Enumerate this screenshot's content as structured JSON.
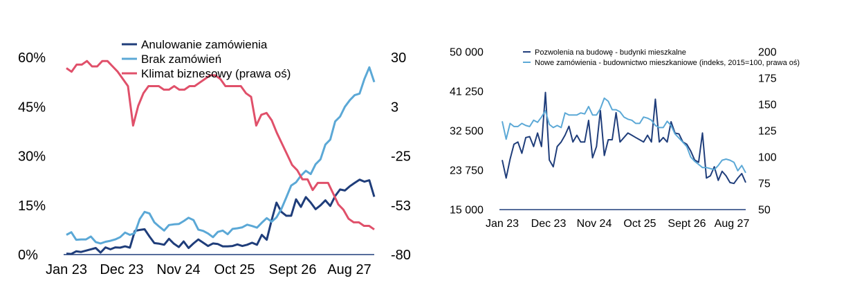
{
  "chart_data": [
    {
      "type": "line",
      "x_ticks": [
        "Jan 23",
        "Dec 23",
        "Nov 24",
        "Oct 25",
        "Sept 26",
        "Aug 27"
      ],
      "y_left": {
        "ticks": [
          "0%",
          "15%",
          "30%",
          "45%",
          "60%"
        ],
        "range": [
          0,
          60
        ]
      },
      "y_right": {
        "ticks": [
          "-80",
          "-53",
          "-25",
          "3",
          "30"
        ],
        "range": [
          -80,
          30
        ]
      },
      "legend_position": "top-center",
      "grid": false,
      "series": [
        {
          "name": "Anulowanie zamówienia",
          "axis": "left",
          "color": "#1f3d7a",
          "values": [
            0.3,
            0.2,
            1,
            0.8,
            1.2,
            1.6,
            2,
            0.6,
            2.2,
            1.6,
            2.2,
            2.1,
            2.5,
            2.1,
            7.2,
            7.5,
            7.7,
            5.5,
            3.5,
            3.3,
            3,
            4.8,
            3.3,
            2.3,
            4,
            2,
            3.4,
            4.6,
            3.6,
            2.6,
            3.4,
            3.2,
            2.5,
            2.5,
            2.6,
            3.1,
            2.6,
            3,
            3.6,
            3,
            6,
            4.5,
            10.5,
            15.8,
            13,
            11.8,
            11.8,
            16.8,
            14.5,
            17.5,
            15.8,
            13.8,
            15,
            16.5,
            14.8,
            17.8,
            19.8,
            19.5,
            20.8,
            21.8,
            22.8,
            22.2,
            22.6,
            17.6
          ]
        },
        {
          "name": "Brak zamówień",
          "axis": "left",
          "color": "#5ba8d6",
          "values": [
            6,
            6.8,
            4.5,
            4.6,
            4.6,
            5.5,
            3.8,
            3.4,
            3.9,
            4.2,
            4.6,
            5.3,
            6.7,
            6,
            6.5,
            10.8,
            13,
            12.5,
            9.8,
            8.5,
            7.3,
            9,
            9.2,
            9.3,
            10.2,
            11.2,
            10.5,
            7.6,
            7.2,
            6.4,
            5.3,
            6.9,
            7.3,
            6.2,
            7.8,
            8,
            8.3,
            9.1,
            8.7,
            8.2,
            9.7,
            11.1,
            10,
            11.3,
            13.9,
            17.4,
            21,
            22,
            24,
            25.5,
            24.5,
            27.5,
            29,
            33.5,
            35,
            40.5,
            42,
            45,
            47,
            48.5,
            49,
            53.5,
            57,
            52.5
          ]
        },
        {
          "name": "Klimat biznesowy (prawa oś)",
          "axis": "right",
          "color": "#e0506a",
          "values": [
            24,
            22,
            26,
            26,
            28,
            25,
            25,
            28,
            28,
            25,
            22,
            18,
            14,
            -8,
            3,
            10,
            14,
            14,
            14,
            12,
            12,
            14,
            12,
            12,
            14,
            14,
            16,
            18,
            20,
            20,
            18,
            14,
            14,
            14,
            14,
            10,
            8,
            -8,
            -2,
            -1,
            -5,
            -12,
            -18,
            -24,
            -30,
            -33,
            -38,
            -38,
            -44,
            -40,
            -40,
            -40,
            -46,
            -52,
            -55,
            -60,
            -62,
            -62,
            -64,
            -64,
            -66
          ]
        }
      ]
    },
    {
      "type": "line",
      "x_ticks": [
        "Jan 23",
        "Dec 23",
        "Nov 24",
        "Oct 25",
        "Sept 26",
        "Aug 27"
      ],
      "y_left": {
        "ticks": [
          "15 000",
          "23 750",
          "32 500",
          "41 250",
          "50 000"
        ],
        "range": [
          15000,
          50000
        ]
      },
      "y_right": {
        "ticks": [
          "50",
          "75",
          "100",
          "125",
          "150",
          "175",
          "200"
        ],
        "range": [
          50,
          200
        ]
      },
      "legend_position": "top-right",
      "grid": false,
      "series": [
        {
          "name": "Pozwolenia na budowę - budynki mieszkalne",
          "axis": "left",
          "color": "#1f3d7a",
          "values": [
            26000,
            22000,
            26200,
            29500,
            30000,
            27500,
            31000,
            31200,
            29000,
            32000,
            29000,
            41000,
            26000,
            24500,
            29000,
            30000,
            31500,
            33500,
            30000,
            31500,
            30000,
            30000,
            34800,
            26500,
            29000,
            37000,
            27000,
            30500,
            30500,
            36500,
            30000,
            31000,
            32000,
            31500,
            31000,
            30500,
            30000,
            31500,
            30000,
            39500,
            30000,
            31000,
            30000,
            34500,
            32000,
            31800,
            30000,
            29500,
            28000,
            26000,
            25500,
            32000,
            22000,
            22500,
            24500,
            21500,
            23500,
            22500,
            21000,
            20800,
            22000,
            23000,
            21000
          ]
        },
        {
          "name": "Nowe zamówienia - budownictwo mieszkaniowe (indeks, 2015=100, prawa oś)",
          "axis": "right",
          "color": "#5ba8d6",
          "values": [
            134,
            117,
            132,
            129,
            129,
            132,
            130,
            129,
            135,
            133,
            138,
            144,
            131,
            128,
            130,
            128,
            142,
            140,
            140,
            140,
            142,
            141,
            148,
            140,
            140,
            146,
            156,
            153,
            145,
            145,
            143,
            138,
            136,
            135,
            132,
            132,
            138,
            137,
            135,
            130,
            128,
            128,
            134,
            130,
            122,
            118,
            114,
            110,
            100,
            96,
            93,
            90,
            90,
            89,
            88,
            92,
            97,
            98,
            97,
            95,
            87,
            92,
            85
          ]
        }
      ]
    }
  ]
}
